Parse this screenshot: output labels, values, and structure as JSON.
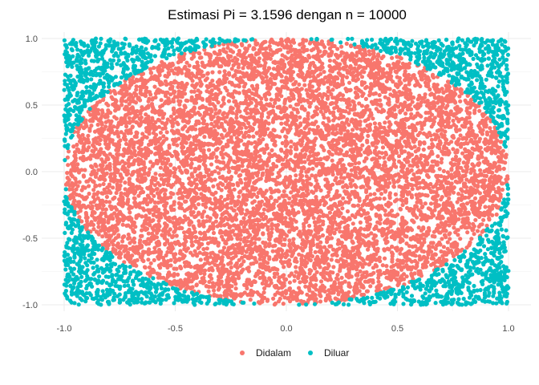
{
  "chart_data": {
    "type": "scatter",
    "title": "Estimasi Pi = 3.1596 dengan n = 10000",
    "xlabel": "",
    "ylabel": "",
    "xlim": [
      -1.0,
      1.0
    ],
    "ylim": [
      -1.0,
      1.0
    ],
    "x_ticks": [
      -1.0,
      -0.5,
      0.0,
      0.5,
      1.0
    ],
    "y_ticks": [
      -1.0,
      -0.5,
      0.0,
      0.5,
      1.0
    ],
    "x_tick_labels": [
      "-1.0",
      "-0.5",
      "0.0",
      "0.5",
      "1.0"
    ],
    "y_tick_labels": [
      "-1.0",
      "-0.5",
      "0.0",
      "0.5",
      "1.0"
    ],
    "grid": true,
    "legend_position": "bottom",
    "n": 10000,
    "pi_estimate": 3.1596,
    "series": [
      {
        "name": "Didalam",
        "color": "#F8766D",
        "rule": "x^2 + y^2 <= 1"
      },
      {
        "name": "Diluar",
        "color": "#00BFC4",
        "rule": "x^2 + y^2 > 1"
      }
    ]
  }
}
